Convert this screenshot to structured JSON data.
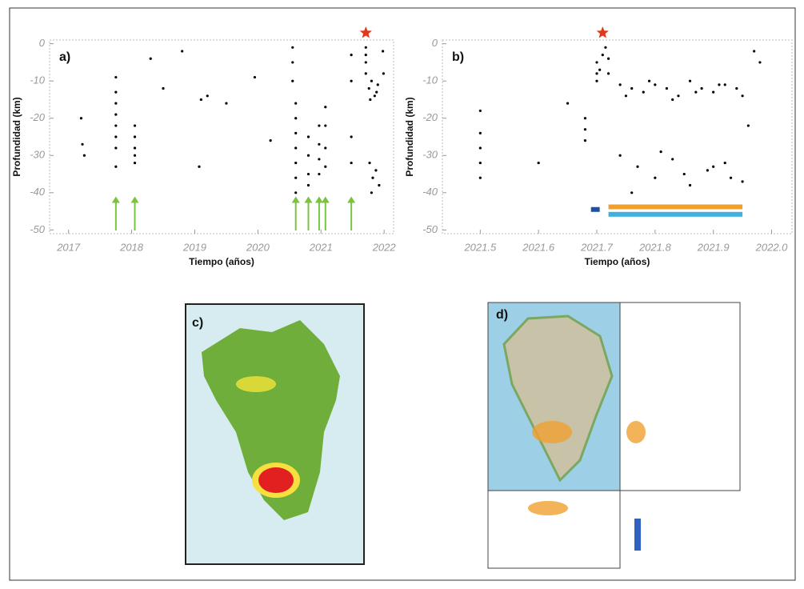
{
  "chart_data": [
    {
      "type": "scatter",
      "panel_label": "a)",
      "x_label": "Tiempo (años)",
      "y_label": "Profundidad (km)",
      "color": "#000000",
      "xlim": [
        2016.7,
        2022.15
      ],
      "ylim": [
        -51,
        1
      ],
      "xticks": [
        2017,
        2018,
        2019,
        2020,
        2021,
        2022
      ],
      "yticks": [
        0,
        -10,
        -20,
        -30,
        -40,
        -50
      ],
      "x": [
        2017.2,
        2017.22,
        2017.25,
        2017.75,
        2017.75,
        2017.75,
        2017.75,
        2017.75,
        2017.75,
        2017.75,
        2017.75,
        2018.05,
        2018.05,
        2018.05,
        2018.05,
        2018.05,
        2018.3,
        2018.5,
        2018.8,
        2019.1,
        2019.2,
        2019.5,
        2019.95,
        2020.2,
        2019.07,
        2020.55,
        2020.55,
        2020.55,
        2020.6,
        2020.6,
        2020.6,
        2020.6,
        2020.6,
        2020.6,
        2020.6,
        2020.8,
        2020.8,
        2020.8,
        2020.8,
        2020.97,
        2020.97,
        2020.97,
        2020.97,
        2021.07,
        2021.07,
        2021.07,
        2021.07,
        2021.48,
        2021.48,
        2021.48,
        2021.48,
        2021.71,
        2021.71,
        2021.71,
        2021.71,
        2021.76,
        2021.8,
        2021.85,
        2021.9,
        2021.78,
        2021.88,
        2021.77,
        2021.82,
        2021.87,
        2021.92,
        2021.8,
        2021.98,
        2021.99
      ],
      "values": [
        -20,
        -27,
        -30,
        -9,
        -13,
        -16,
        -19,
        -22,
        -25,
        -28,
        -33,
        -22,
        -25,
        -28,
        -30,
        -32,
        -4,
        -12,
        -2,
        -15,
        -14,
        -16,
        -9,
        -26,
        -33,
        -1,
        -5,
        -10,
        -16,
        -20,
        -24,
        -28,
        -32,
        -36,
        -40,
        -25,
        -30,
        -35,
        -38,
        -22,
        -27,
        -31,
        -35,
        -17,
        -22,
        -28,
        -33,
        -3,
        -10,
        -25,
        -32,
        -1,
        -3,
        -5,
        -8,
        -12,
        -10,
        -14,
        -11,
        -15,
        -13,
        -32,
        -36,
        -34,
        -38,
        -40,
        -2,
        -8
      ],
      "arrows": [
        2017.75,
        2018.05,
        2020.6,
        2020.8,
        2020.97,
        2021.07,
        2021.48
      ],
      "arrow_color": "#7cc242",
      "star": {
        "x": 2021.71,
        "color": "#e03a1e"
      }
    },
    {
      "type": "scatter",
      "panel_label": "b)",
      "x_label": "Tiempo (años)",
      "y_label": "Profundidad (km)",
      "color": "#000000",
      "xlim": [
        2021.435,
        2022.035
      ],
      "ylim": [
        -51,
        1
      ],
      "xticks": [
        2021.5,
        2021.6,
        2021.7,
        2021.8,
        2021.9,
        {
          "value": 2022,
          "label": "2022.0"
        }
      ],
      "yticks": [
        0,
        -10,
        -20,
        -30,
        -40,
        -50
      ],
      "x": [
        2021.5,
        2021.5,
        2021.5,
        2021.5,
        2021.5,
        2021.6,
        2021.65,
        2021.68,
        2021.68,
        2021.68,
        2021.7,
        2021.7,
        2021.7,
        2021.705,
        2021.71,
        2021.715,
        2021.72,
        2021.72,
        2021.74,
        2021.76,
        2021.78,
        2021.8,
        2021.82,
        2021.84,
        2021.86,
        2021.88,
        2021.9,
        2021.92,
        2021.94,
        2021.75,
        2021.79,
        2021.83,
        2021.87,
        2021.91,
        2021.95,
        2021.74,
        2021.77,
        2021.8,
        2021.83,
        2021.86,
        2021.89,
        2021.92,
        2021.95,
        2021.76,
        2021.81,
        2021.85,
        2021.9,
        2021.93,
        2021.97,
        2021.98,
        2021.96
      ],
      "values": [
        -18,
        -24,
        -28,
        -32,
        -36,
        -32,
        -16,
        -20,
        -23,
        -26,
        -5,
        -8,
        -10,
        -7,
        -3,
        -1,
        -4,
        -8,
        -11,
        -12,
        -13,
        -11,
        -12,
        -14,
        -10,
        -12,
        -13,
        -11,
        -12,
        -14,
        -10,
        -15,
        -13,
        -11,
        -14,
        -30,
        -33,
        -36,
        -31,
        -38,
        -34,
        -32,
        -37,
        -40,
        -29,
        -35,
        -33,
        -36,
        -2,
        -5,
        -22
      ],
      "bars": [
        {
          "x": [
            2021.69,
            2021.705
          ],
          "y": -44.5,
          "color": "#1f4fa0"
        },
        {
          "x": [
            2021.72,
            2021.95
          ],
          "y": -43.8,
          "color": "#f0a030"
        },
        {
          "x": [
            2021.72,
            2021.95
          ],
          "y": -45.8,
          "color": "#40b0e0"
        }
      ],
      "star": {
        "x": 2021.71,
        "color": "#e03a1e"
      }
    }
  ],
  "maps": {
    "c": {
      "panel_label": "c)"
    },
    "d": {
      "panel_label": "d)"
    }
  }
}
